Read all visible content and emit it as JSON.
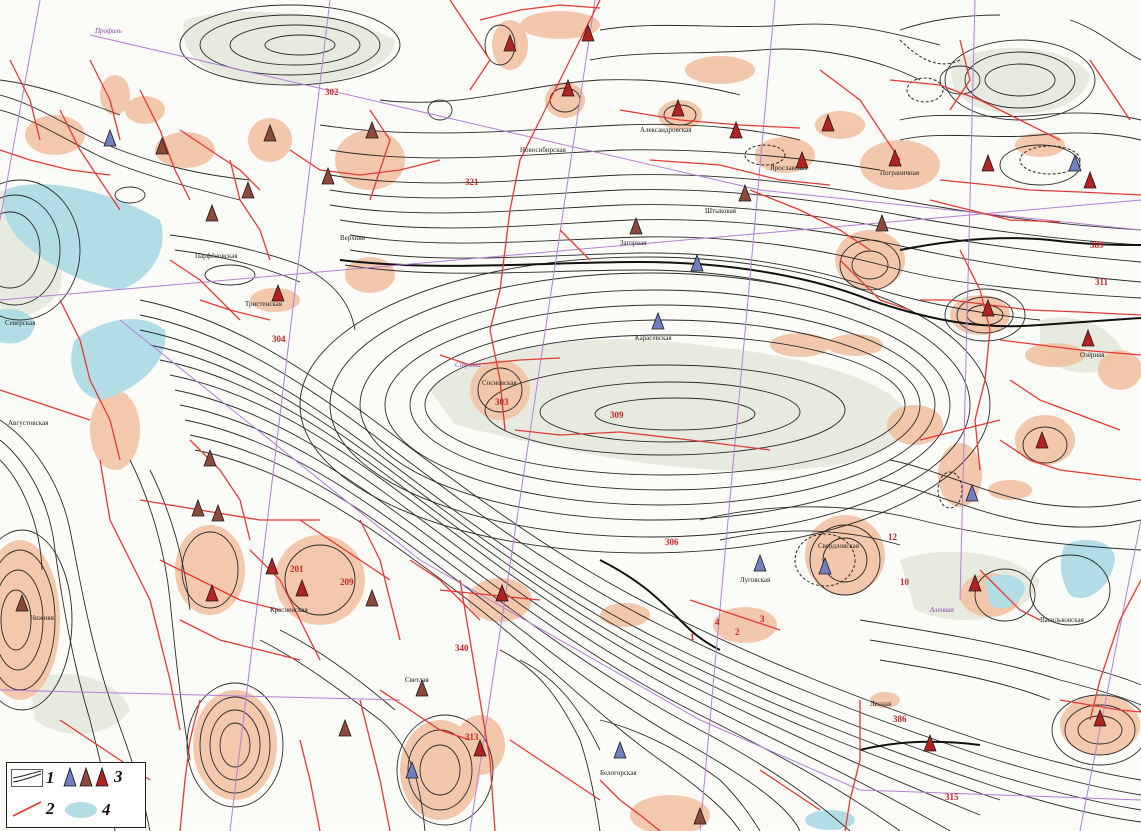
{
  "map": {
    "colors": {
      "contour": "#2b2b2b",
      "fault": "#e53935",
      "anomaly_fill": "#f2c2a4",
      "flat_fill": "#e7ebdf",
      "water_fill": "#b3dde6",
      "profile_line": "#b57fd6",
      "well_red": "#b22222",
      "well_blue": "#6f7fc1",
      "well_brown": "#8b4a3a"
    },
    "labels": [
      {
        "id": "lbl-parfenovskaya",
        "text": "Парфёновская"
      },
      {
        "id": "lbl-tristenskaya",
        "text": "Тристенская"
      },
      {
        "id": "lbl-severskaya",
        "text": "Северская"
      },
      {
        "id": "lbl-avgustovskaya",
        "text": "Августовская"
      },
      {
        "id": "lbl-sosnovskaya",
        "text": "Сосновская"
      },
      {
        "id": "lbl-karasevskaya",
        "text": "Карасевская"
      },
      {
        "id": "lbl-zagorodnaya",
        "text": "Загорная"
      },
      {
        "id": "lbl-novosibirskaya",
        "text": "Новосибирская"
      },
      {
        "id": "lbl-aleksandrovskaya",
        "text": "Александровская"
      },
      {
        "id": "lbl-yaroslavskaya",
        "text": "Ярославская"
      },
      {
        "id": "lbl-shtykovaya",
        "text": "Штыковая"
      },
      {
        "id": "lbl-pogranichnaya",
        "text": "Пограничная"
      },
      {
        "id": "lbl-lugovskaya",
        "text": "Луговская"
      },
      {
        "id": "lbl-sverdlovskaya",
        "text": "Свердловская"
      },
      {
        "id": "lbl-krasnenskaya",
        "text": "Красненская"
      },
      {
        "id": "lbl-belogorskaya",
        "text": "Белогорская"
      },
      {
        "id": "lbl-vasilkovskaya",
        "text": "Васильковская"
      },
      {
        "id": "lbl-nizhnyaya",
        "text": "Нижняя"
      },
      {
        "id": "lbl-verhnyaya",
        "text": "Верхняя"
      },
      {
        "id": "lbl-svetlaya",
        "text": "Светлая"
      },
      {
        "id": "lbl-lesnaya",
        "text": "Лесная"
      },
      {
        "id": "lbl-ozernaya",
        "text": "Озёрная"
      }
    ],
    "numbers": [
      {
        "id": "n-302",
        "text": "302"
      },
      {
        "id": "n-321",
        "text": "321"
      },
      {
        "id": "n-304",
        "text": "304"
      },
      {
        "id": "n-303",
        "text": "303"
      },
      {
        "id": "n-309",
        "text": "309"
      },
      {
        "id": "n-306",
        "text": "306"
      },
      {
        "id": "n-311",
        "text": "311"
      },
      {
        "id": "n-340",
        "text": "340"
      },
      {
        "id": "n-313",
        "text": "313"
      },
      {
        "id": "n-315",
        "text": "315"
      },
      {
        "id": "n-386",
        "text": "386"
      },
      {
        "id": "n-389",
        "text": "389"
      },
      {
        "id": "n-201",
        "text": "201"
      },
      {
        "id": "n-209",
        "text": "209"
      },
      {
        "id": "n-12",
        "text": "12"
      },
      {
        "id": "n-10",
        "text": "10"
      },
      {
        "id": "n-4",
        "text": "4"
      },
      {
        "id": "n-3",
        "text": "3"
      },
      {
        "id": "n-2",
        "text": "2"
      },
      {
        "id": "n-1",
        "text": "1"
      }
    ],
    "profile_labels": [
      {
        "id": "pl-1",
        "text": "Профиль"
      },
      {
        "id": "pl-2",
        "text": "Стрелка"
      },
      {
        "id": "pl-3",
        "text": "Аленкая"
      }
    ]
  },
  "legend": {
    "items": [
      {
        "num": "1",
        "meaning": "contour-lines"
      },
      {
        "num": "2",
        "meaning": "faults"
      },
      {
        "num": "3",
        "meaning": "wells"
      },
      {
        "num": "4",
        "meaning": "water-bodies"
      }
    ]
  }
}
